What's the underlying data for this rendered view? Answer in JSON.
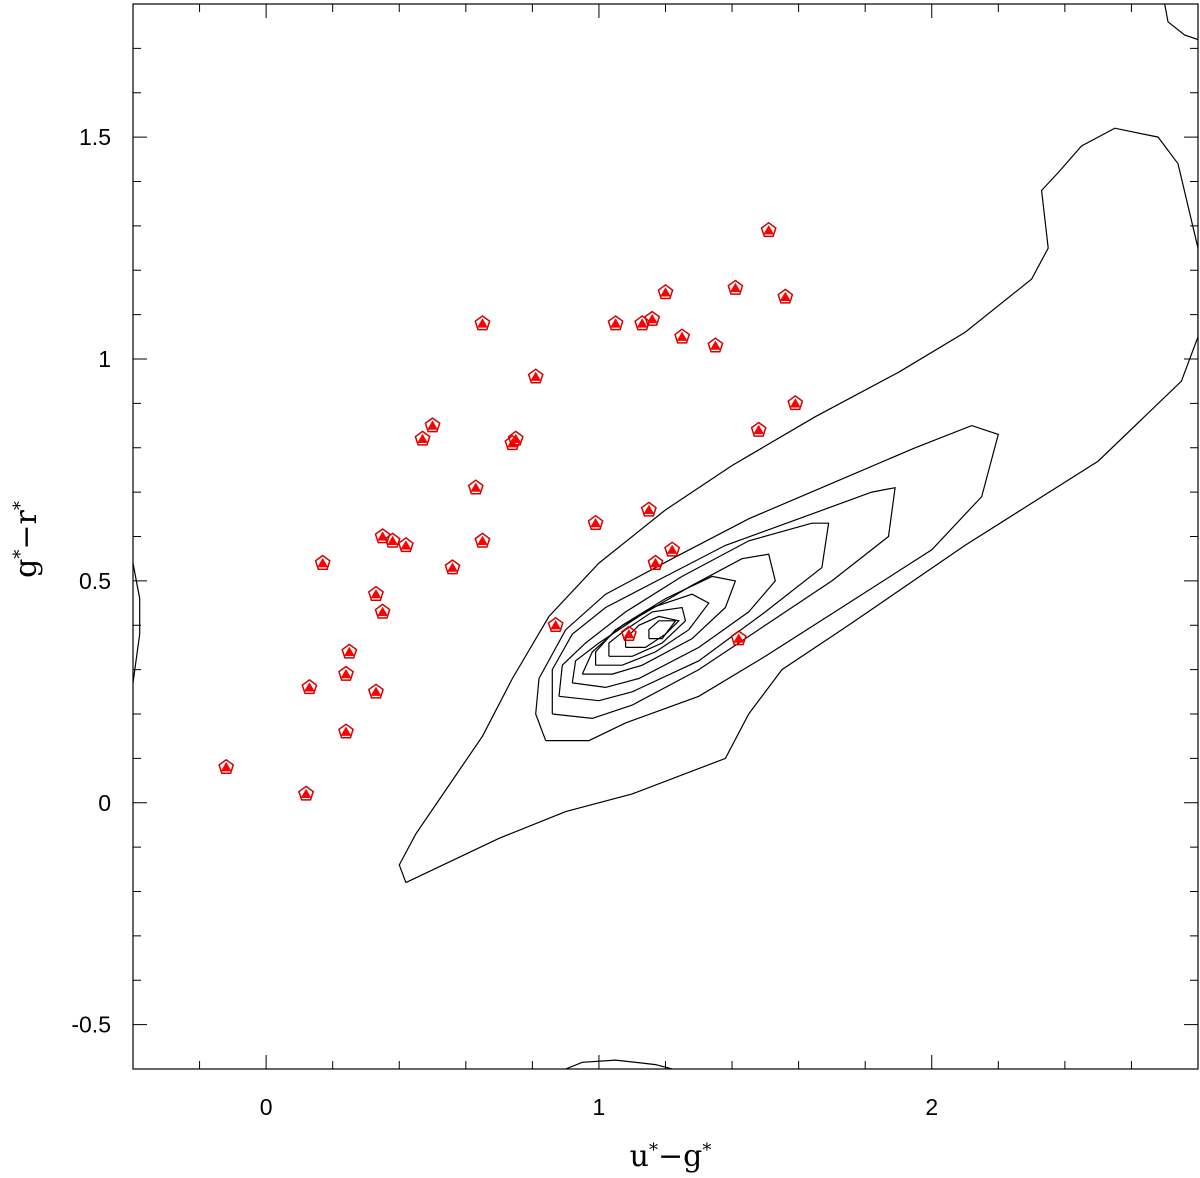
{
  "chart_data": {
    "type": "scatter",
    "title": "",
    "xlabel": "u*−g*",
    "ylabel": "g*−r*",
    "xlim": [
      -0.4,
      2.8
    ],
    "ylim": [
      -0.6,
      1.8
    ],
    "x_ticks": [
      {
        "value": 0,
        "label": "0"
      },
      {
        "value": 1,
        "label": "1"
      },
      {
        "value": 2,
        "label": "2"
      }
    ],
    "y_ticks": [
      {
        "value": -0.5,
        "label": "-0.5"
      },
      {
        "value": 0,
        "label": "0"
      },
      {
        "value": 0.5,
        "label": "0.5"
      },
      {
        "value": 1,
        "label": "1"
      },
      {
        "value": 1.5,
        "label": "1.5"
      }
    ],
    "x_minor_step": 0.2,
    "y_minor_step": 0.1,
    "grid": false,
    "marker_color": "#ff0000",
    "contour_color": "#000000",
    "series": [
      {
        "marker": "red-pentagon-triangle",
        "x": [
          -0.12,
          0.12,
          0.13,
          0.17,
          0.24,
          0.24,
          0.25,
          0.33,
          0.33,
          0.35,
          0.35,
          0.38,
          0.42,
          0.47,
          0.5,
          0.56,
          0.63,
          0.65,
          0.65,
          0.74,
          0.75,
          0.81,
          0.87,
          0.99,
          1.05,
          1.09,
          1.13,
          1.15,
          1.16,
          1.17,
          1.2,
          1.22,
          1.25,
          1.35,
          1.41,
          1.42,
          1.48,
          1.51,
          1.56,
          1.59
        ],
        "y": [
          0.08,
          0.02,
          0.26,
          0.54,
          0.16,
          0.29,
          0.34,
          0.47,
          0.25,
          0.6,
          0.43,
          0.59,
          0.58,
          0.82,
          0.85,
          0.53,
          0.71,
          1.08,
          0.59,
          0.81,
          0.82,
          0.96,
          0.4,
          0.63,
          1.08,
          0.38,
          1.08,
          0.66,
          1.09,
          0.54,
          1.15,
          0.57,
          1.05,
          1.03,
          1.16,
          0.37,
          0.84,
          1.29,
          1.14,
          0.9
        ]
      }
    ],
    "contours": [
      [
        [
          0.42,
          -0.18
        ],
        [
          0.7,
          -0.08
        ],
        [
          0.9,
          -0.02
        ],
        [
          1.1,
          0.02
        ],
        [
          1.38,
          0.1
        ],
        [
          1.45,
          0.2
        ],
        [
          1.55,
          0.3
        ],
        [
          1.75,
          0.4
        ],
        [
          2.1,
          0.58
        ],
        [
          2.5,
          0.77
        ],
        [
          2.75,
          0.95
        ],
        [
          2.8,
          1.05
        ],
        [
          2.8,
          1.25
        ],
        [
          2.74,
          1.44
        ],
        [
          2.68,
          1.5
        ],
        [
          2.55,
          1.52
        ],
        [
          2.45,
          1.48
        ],
        [
          2.38,
          1.42
        ],
        [
          2.33,
          1.38
        ],
        [
          2.35,
          1.25
        ],
        [
          2.3,
          1.18
        ],
        [
          2.1,
          1.06
        ],
        [
          1.9,
          0.97
        ],
        [
          1.65,
          0.87
        ],
        [
          1.4,
          0.76
        ],
        [
          1.2,
          0.66
        ],
        [
          1.0,
          0.54
        ],
        [
          0.85,
          0.42
        ],
        [
          0.74,
          0.28
        ],
        [
          0.65,
          0.15
        ],
        [
          0.55,
          0.04
        ],
        [
          0.45,
          -0.07
        ],
        [
          0.4,
          -0.14
        ],
        [
          0.42,
          -0.18
        ]
      ],
      [
        [
          0.84,
          0.14
        ],
        [
          0.97,
          0.14
        ],
        [
          1.08,
          0.18
        ],
        [
          1.3,
          0.24
        ],
        [
          1.5,
          0.33
        ],
        [
          1.75,
          0.45
        ],
        [
          2.0,
          0.57
        ],
        [
          2.15,
          0.69
        ],
        [
          2.2,
          0.83
        ],
        [
          2.12,
          0.85
        ],
        [
          1.95,
          0.8
        ],
        [
          1.7,
          0.72
        ],
        [
          1.45,
          0.64
        ],
        [
          1.22,
          0.55
        ],
        [
          1.02,
          0.47
        ],
        [
          0.9,
          0.39
        ],
        [
          0.82,
          0.28
        ],
        [
          0.81,
          0.2
        ],
        [
          0.84,
          0.14
        ]
      ],
      [
        [
          0.86,
          0.2
        ],
        [
          0.98,
          0.19
        ],
        [
          1.1,
          0.22
        ],
        [
          1.3,
          0.3
        ],
        [
          1.5,
          0.4
        ],
        [
          1.7,
          0.5
        ],
        [
          1.87,
          0.6
        ],
        [
          1.89,
          0.71
        ],
        [
          1.82,
          0.7
        ],
        [
          1.6,
          0.64
        ],
        [
          1.38,
          0.58
        ],
        [
          1.2,
          0.51
        ],
        [
          1.02,
          0.44
        ],
        [
          0.92,
          0.38
        ],
        [
          0.86,
          0.3
        ],
        [
          0.86,
          0.2
        ]
      ],
      [
        [
          0.88,
          0.24
        ],
        [
          1.0,
          0.23
        ],
        [
          1.1,
          0.25
        ],
        [
          1.3,
          0.32
        ],
        [
          1.5,
          0.43
        ],
        [
          1.67,
          0.53
        ],
        [
          1.69,
          0.63
        ],
        [
          1.64,
          0.63
        ],
        [
          1.45,
          0.59
        ],
        [
          1.25,
          0.51
        ],
        [
          1.08,
          0.43
        ],
        [
          0.96,
          0.36
        ],
        [
          0.89,
          0.31
        ],
        [
          0.88,
          0.24
        ]
      ],
      [
        [
          0.92,
          0.27
        ],
        [
          1.02,
          0.26
        ],
        [
          1.12,
          0.28
        ],
        [
          1.3,
          0.35
        ],
        [
          1.45,
          0.43
        ],
        [
          1.53,
          0.5
        ],
        [
          1.51,
          0.56
        ],
        [
          1.43,
          0.55
        ],
        [
          1.28,
          0.49
        ],
        [
          1.12,
          0.42
        ],
        [
          1.0,
          0.36
        ],
        [
          0.93,
          0.32
        ],
        [
          0.92,
          0.27
        ]
      ],
      [
        [
          0.95,
          0.29
        ],
        [
          1.04,
          0.29
        ],
        [
          1.13,
          0.31
        ],
        [
          1.28,
          0.37
        ],
        [
          1.38,
          0.44
        ],
        [
          1.41,
          0.5
        ],
        [
          1.34,
          0.51
        ],
        [
          1.2,
          0.46
        ],
        [
          1.07,
          0.4
        ],
        [
          0.98,
          0.34
        ],
        [
          0.95,
          0.29
        ]
      ],
      [
        [
          0.99,
          0.31
        ],
        [
          1.07,
          0.31
        ],
        [
          1.17,
          0.34
        ],
        [
          1.27,
          0.39
        ],
        [
          1.33,
          0.45
        ],
        [
          1.28,
          0.47
        ],
        [
          1.16,
          0.44
        ],
        [
          1.05,
          0.39
        ],
        [
          0.99,
          0.34
        ],
        [
          0.99,
          0.31
        ]
      ],
      [
        [
          1.03,
          0.33
        ],
        [
          1.1,
          0.33
        ],
        [
          1.19,
          0.36
        ],
        [
          1.26,
          0.41
        ],
        [
          1.25,
          0.44
        ],
        [
          1.16,
          0.43
        ],
        [
          1.08,
          0.39
        ],
        [
          1.03,
          0.36
        ],
        [
          1.03,
          0.33
        ]
      ],
      [
        [
          1.08,
          0.35
        ],
        [
          1.14,
          0.35
        ],
        [
          1.2,
          0.38
        ],
        [
          1.24,
          0.41
        ],
        [
          1.18,
          0.42
        ],
        [
          1.12,
          0.4
        ],
        [
          1.08,
          0.37
        ],
        [
          1.08,
          0.35
        ]
      ],
      [
        [
          1.15,
          0.37
        ],
        [
          1.19,
          0.37
        ],
        [
          1.23,
          0.41
        ],
        [
          1.18,
          0.41
        ],
        [
          1.15,
          0.39
        ],
        [
          1.15,
          0.37
        ]
      ],
      [
        [
          2.7,
          1.8
        ],
        [
          2.71,
          1.76
        ],
        [
          2.76,
          1.73
        ],
        [
          2.8,
          1.72
        ]
      ],
      [
        [
          -0.4,
          0.54
        ],
        [
          -0.38,
          0.46
        ],
        [
          -0.38,
          0.38
        ],
        [
          -0.4,
          0.27
        ]
      ],
      [
        [
          0.9,
          -0.6
        ],
        [
          0.95,
          -0.585
        ],
        [
          1.05,
          -0.58
        ],
        [
          1.17,
          -0.59
        ],
        [
          1.22,
          -0.6
        ]
      ]
    ]
  }
}
